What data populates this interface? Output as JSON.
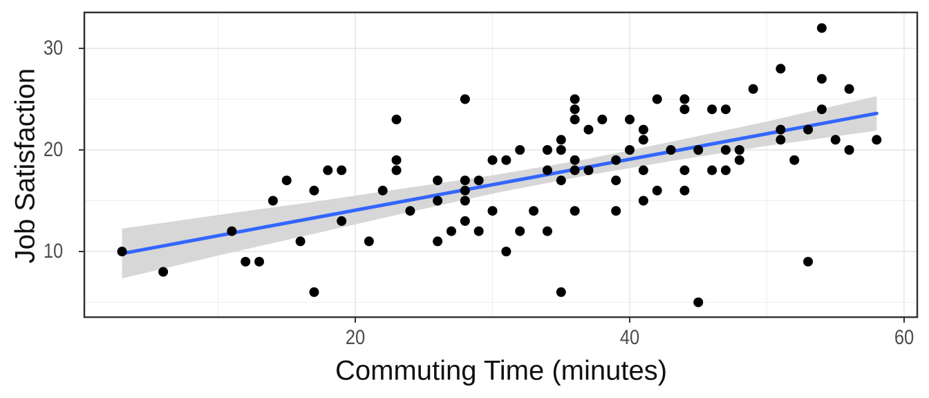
{
  "figure": {
    "kind": "ggplot-style scatter plot with linear trend and confidence band"
  },
  "chart_data": {
    "type": "scatter",
    "title": "",
    "xlabel": "Commuting Time (minutes)",
    "ylabel": "Job Satisfaction",
    "x_ticks": [
      20,
      40,
      60
    ],
    "x_minor_ticks": [
      10,
      30,
      50
    ],
    "y_ticks": [
      10,
      20,
      30
    ],
    "y_minor_ticks": [
      5,
      15,
      25
    ],
    "xlim": [
      0.25,
      60.95
    ],
    "ylim": [
      3.6,
      33.5
    ],
    "grid": "major+minor",
    "legend": "none",
    "points": [
      [
        3,
        10
      ],
      [
        6,
        8
      ],
      [
        11,
        12
      ],
      [
        12,
        9
      ],
      [
        13,
        9
      ],
      [
        14,
        15
      ],
      [
        15,
        17
      ],
      [
        16,
        11
      ],
      [
        17,
        16
      ],
      [
        17,
        6
      ],
      [
        18,
        18
      ],
      [
        19,
        18
      ],
      [
        19,
        13
      ],
      [
        21,
        11
      ],
      [
        22,
        16
      ],
      [
        23,
        23
      ],
      [
        23,
        19
      ],
      [
        23,
        18
      ],
      [
        24,
        14
      ],
      [
        26,
        17
      ],
      [
        26,
        15
      ],
      [
        26,
        11
      ],
      [
        27,
        12
      ],
      [
        28,
        25
      ],
      [
        28,
        17
      ],
      [
        28,
        16
      ],
      [
        28,
        15
      ],
      [
        28,
        13
      ],
      [
        29,
        17
      ],
      [
        29,
        12
      ],
      [
        30,
        19
      ],
      [
        30,
        14
      ],
      [
        31,
        19
      ],
      [
        31,
        10
      ],
      [
        32,
        20
      ],
      [
        32,
        12
      ],
      [
        33,
        14
      ],
      [
        34,
        20
      ],
      [
        34,
        18
      ],
      [
        34,
        12
      ],
      [
        35,
        21
      ],
      [
        35,
        20
      ],
      [
        35,
        17
      ],
      [
        35,
        6
      ],
      [
        36,
        25
      ],
      [
        36,
        24
      ],
      [
        36,
        23
      ],
      [
        36,
        19
      ],
      [
        36,
        18
      ],
      [
        36,
        14
      ],
      [
        37,
        22
      ],
      [
        37,
        18
      ],
      [
        38,
        23
      ],
      [
        39,
        19
      ],
      [
        39,
        17
      ],
      [
        39,
        14
      ],
      [
        40,
        23
      ],
      [
        40,
        20
      ],
      [
        41,
        22
      ],
      [
        41,
        21
      ],
      [
        41,
        18
      ],
      [
        41,
        15
      ],
      [
        42,
        25
      ],
      [
        42,
        16
      ],
      [
        43,
        20
      ],
      [
        44,
        25
      ],
      [
        44,
        24
      ],
      [
        44,
        18
      ],
      [
        44,
        16
      ],
      [
        45,
        20
      ],
      [
        45,
        5
      ],
      [
        46,
        24
      ],
      [
        46,
        18
      ],
      [
        47,
        24
      ],
      [
        47,
        20
      ],
      [
        47,
        18
      ],
      [
        48,
        20
      ],
      [
        48,
        19
      ],
      [
        49,
        26
      ],
      [
        51,
        28
      ],
      [
        51,
        22
      ],
      [
        51,
        21
      ],
      [
        52,
        19
      ],
      [
        53,
        22
      ],
      [
        53,
        9
      ],
      [
        54,
        32
      ],
      [
        54,
        27
      ],
      [
        54,
        24
      ],
      [
        55,
        21
      ],
      [
        56,
        26
      ],
      [
        56,
        20
      ],
      [
        58,
        21
      ]
    ],
    "trend_line": {
      "type": "linear",
      "slope": 0.251,
      "intercept": 9.05,
      "x_start": 3,
      "x_end": 58,
      "y_start": 9.8,
      "y_end": 23.6
    },
    "ci_band": {
      "x": [
        3,
        10,
        17,
        24,
        30,
        36.5,
        43,
        50,
        58
      ],
      "lo": [
        7.35,
        9.6,
        11.75,
        13.9,
        15.7,
        17.4,
        18.9,
        20.4,
        21.9
      ],
      "hi": [
        12.25,
        13.6,
        14.9,
        16.3,
        17.5,
        19.0,
        20.8,
        22.8,
        25.3
      ]
    }
  },
  "colors": {
    "background": "#ffffff",
    "panel_background": "#ffffff",
    "panel_border": "#333333",
    "grid_major": "#e4e4e4",
    "grid_minor": "#ededed",
    "point": "#000000",
    "trend_line": "#3366ff",
    "ci_band": "#d7d7d7",
    "tick_mark": "#333333",
    "tick_text": "#4d4d4d",
    "title_text": "#111111"
  }
}
